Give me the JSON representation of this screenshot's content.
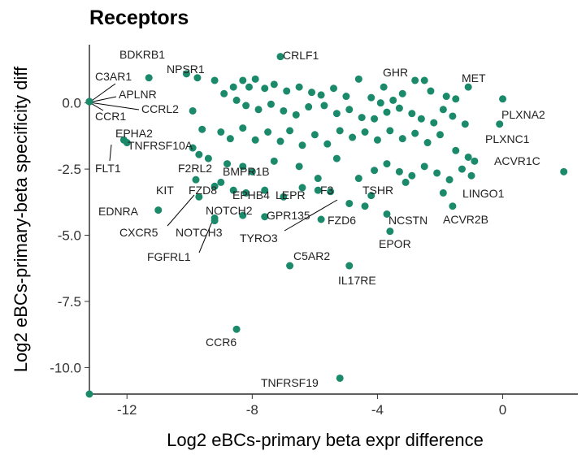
{
  "chart_data": {
    "type": "scatter",
    "title": "Receptors",
    "xlabel": "Log2 eBCs-primary beta expr difference",
    "ylabel": "Log2 eBCs-primary-beta specificity diff",
    "xlim": [
      -13.2,
      2.4
    ],
    "ylim": [
      -11.0,
      2.2
    ],
    "xticks": [
      -12,
      -8,
      -4,
      0
    ],
    "yticks": [
      0.0,
      -2.5,
      -5.0,
      -7.5,
      -10.0
    ],
    "xtick_labels": [
      "-12",
      "-8",
      "-4",
      "0"
    ],
    "ytick_labels": [
      "0.0",
      "-2.5",
      "-5.0",
      "-7.5",
      "-10.0"
    ],
    "point_color": "#1b8a6b",
    "labeled_points": [
      {
        "label": "CRLF1",
        "x": -7.1,
        "y": 1.75
      },
      {
        "label": "BDKRB1",
        "x": -11.3,
        "y": 0.95
      },
      {
        "label": "NPSR1",
        "x": -9.75,
        "y": 0.95
      },
      {
        "label": "C3AR1",
        "x": -13.2,
        "y": 0.05
      },
      {
        "label": "APLNR",
        "x": -13.2,
        "y": 0.05
      },
      {
        "label": "CCRL2",
        "x": -9.9,
        "y": -0.3
      },
      {
        "label": "CCR1",
        "x": -13.2,
        "y": 0.05
      },
      {
        "label": "EPHA2",
        "x": -12.1,
        "y": -1.4
      },
      {
        "label": "TNFRSF10A",
        "x": -9.9,
        "y": -1.7
      },
      {
        "label": "FLT1",
        "x": -12.0,
        "y": -1.5
      },
      {
        "label": "F2RL2",
        "x": -9.7,
        "y": -1.95
      },
      {
        "label": "BMPR1B",
        "x": -8.3,
        "y": -2.4
      },
      {
        "label": "KIT",
        "x": -9.8,
        "y": -2.9
      },
      {
        "label": "FZD8",
        "x": -9.2,
        "y": -3.15
      },
      {
        "label": "EPHB4",
        "x": -8.6,
        "y": -3.3
      },
      {
        "label": "LEPR",
        "x": -7.6,
        "y": -3.3
      },
      {
        "label": "F3",
        "x": -5.9,
        "y": -3.3
      },
      {
        "label": "EDNRA",
        "x": -11.0,
        "y": -4.05
      },
      {
        "label": "NOTCH2",
        "x": -8.3,
        "y": -4.25
      },
      {
        "label": "CXCR5",
        "x": -9.7,
        "y": -3.55
      },
      {
        "label": "NOTCH3",
        "x": -9.2,
        "y": -4.35
      },
      {
        "label": "GPR135",
        "x": -7.6,
        "y": -4.3
      },
      {
        "label": "TYRO3",
        "x": -4.9,
        "y": -3.8
      },
      {
        "label": "FGFRL1",
        "x": -9.2,
        "y": -4.45
      },
      {
        "label": "FZD6",
        "x": -5.8,
        "y": -4.4
      },
      {
        "label": "TSHR",
        "x": -4.2,
        "y": -3.5
      },
      {
        "label": "NCSTN",
        "x": -3.7,
        "y": -4.2
      },
      {
        "label": "EPOR",
        "x": -3.6,
        "y": -4.85
      },
      {
        "label": "C5AR2",
        "x": -6.8,
        "y": -6.15
      },
      {
        "label": "IL17RE",
        "x": -4.9,
        "y": -6.15
      },
      {
        "label": "GHR",
        "x": -3.8,
        "y": 0.6
      },
      {
        "label": "MET",
        "x": -1.1,
        "y": 0.6
      },
      {
        "label": "PLXNA2",
        "x": 0.0,
        "y": 0.15
      },
      {
        "label": "PLXNC1",
        "x": -0.1,
        "y": -0.8
      },
      {
        "label": "ACVR1C",
        "x": 1.95,
        "y": -2.6
      },
      {
        "label": "LINGO1",
        "x": -1.9,
        "y": -3.4
      },
      {
        "label": "ACVR2B",
        "x": -1.6,
        "y": -3.9
      },
      {
        "label": "CCR6",
        "x": -8.5,
        "y": -8.55
      },
      {
        "label": "TNFRSF19",
        "x": -5.2,
        "y": -10.4
      }
    ],
    "unlabeled_points": [
      [
        -13.2,
        -11.0
      ],
      [
        -10.1,
        1.1
      ],
      [
        -9.2,
        0.85
      ],
      [
        -7.9,
        0.9
      ],
      [
        -8.3,
        0.85
      ],
      [
        -8.1,
        0.6
      ],
      [
        -8.6,
        0.6
      ],
      [
        -7.6,
        0.55
      ],
      [
        -7.3,
        0.7
      ],
      [
        -6.9,
        0.45
      ],
      [
        -6.5,
        0.6
      ],
      [
        -6.1,
        0.4
      ],
      [
        -5.8,
        0.3
      ],
      [
        -5.4,
        0.55
      ],
      [
        -5.0,
        0.25
      ],
      [
        -4.6,
        0.9
      ],
      [
        -4.2,
        0.2
      ],
      [
        -3.9,
        0.0
      ],
      [
        -3.5,
        0.1
      ],
      [
        -3.2,
        0.35
      ],
      [
        -2.8,
        0.85
      ],
      [
        -2.5,
        0.85
      ],
      [
        -2.3,
        0.45
      ],
      [
        -1.8,
        0.25
      ],
      [
        -1.5,
        0.15
      ],
      [
        -8.9,
        0.35
      ],
      [
        -8.5,
        0.1
      ],
      [
        -8.2,
        -0.1
      ],
      [
        -7.8,
        -0.25
      ],
      [
        -7.4,
        -0.05
      ],
      [
        -7.0,
        -0.3
      ],
      [
        -6.6,
        -0.45
      ],
      [
        -6.2,
        -0.15
      ],
      [
        -5.7,
        -0.1
      ],
      [
        -5.3,
        -0.4
      ],
      [
        -4.9,
        -0.25
      ],
      [
        -4.5,
        -0.55
      ],
      [
        -4.1,
        -0.6
      ],
      [
        -3.7,
        -0.35
      ],
      [
        -3.3,
        -0.2
      ],
      [
        -2.9,
        -0.4
      ],
      [
        -2.6,
        -0.6
      ],
      [
        -2.2,
        -0.75
      ],
      [
        -1.9,
        -0.25
      ],
      [
        -1.6,
        -0.5
      ],
      [
        -1.2,
        -0.8
      ],
      [
        -9.6,
        -1.0
      ],
      [
        -9.0,
        -1.1
      ],
      [
        -8.7,
        -1.35
      ],
      [
        -8.3,
        -0.95
      ],
      [
        -7.9,
        -1.4
      ],
      [
        -7.5,
        -1.1
      ],
      [
        -7.1,
        -1.45
      ],
      [
        -6.8,
        -1.05
      ],
      [
        -6.4,
        -1.6
      ],
      [
        -6.0,
        -1.2
      ],
      [
        -5.6,
        -1.55
      ],
      [
        -5.2,
        -1.05
      ],
      [
        -4.8,
        -1.3
      ],
      [
        -4.4,
        -1.1
      ],
      [
        -4.0,
        -1.4
      ],
      [
        -3.6,
        -1.05
      ],
      [
        -3.2,
        -1.35
      ],
      [
        -2.8,
        -1.15
      ],
      [
        -2.4,
        -1.5
      ],
      [
        -2.0,
        -1.2
      ],
      [
        -1.5,
        -1.8
      ],
      [
        -1.1,
        -2.05
      ],
      [
        -9.4,
        -2.1
      ],
      [
        -8.8,
        -2.3
      ],
      [
        -8.0,
        -2.6
      ],
      [
        -7.3,
        -2.2
      ],
      [
        -6.5,
        -2.4
      ],
      [
        -5.9,
        -2.85
      ],
      [
        -5.3,
        -2.1
      ],
      [
        -4.6,
        -2.85
      ],
      [
        -4.1,
        -2.55
      ],
      [
        -3.7,
        -2.3
      ],
      [
        -3.3,
        -2.6
      ],
      [
        -2.9,
        -2.75
      ],
      [
        -2.5,
        -2.4
      ],
      [
        -2.1,
        -2.65
      ],
      [
        -1.7,
        -2.9
      ],
      [
        -1.3,
        -2.5
      ],
      [
        -1.0,
        -2.75
      ],
      [
        -0.9,
        -2.2
      ],
      [
        -9.0,
        -3.0
      ],
      [
        -8.2,
        -3.4
      ],
      [
        -7.0,
        -3.55
      ],
      [
        -6.4,
        -3.2
      ],
      [
        -5.5,
        -3.35
      ],
      [
        -4.4,
        -3.9
      ],
      [
        -3.1,
        -3.0
      ]
    ]
  }
}
